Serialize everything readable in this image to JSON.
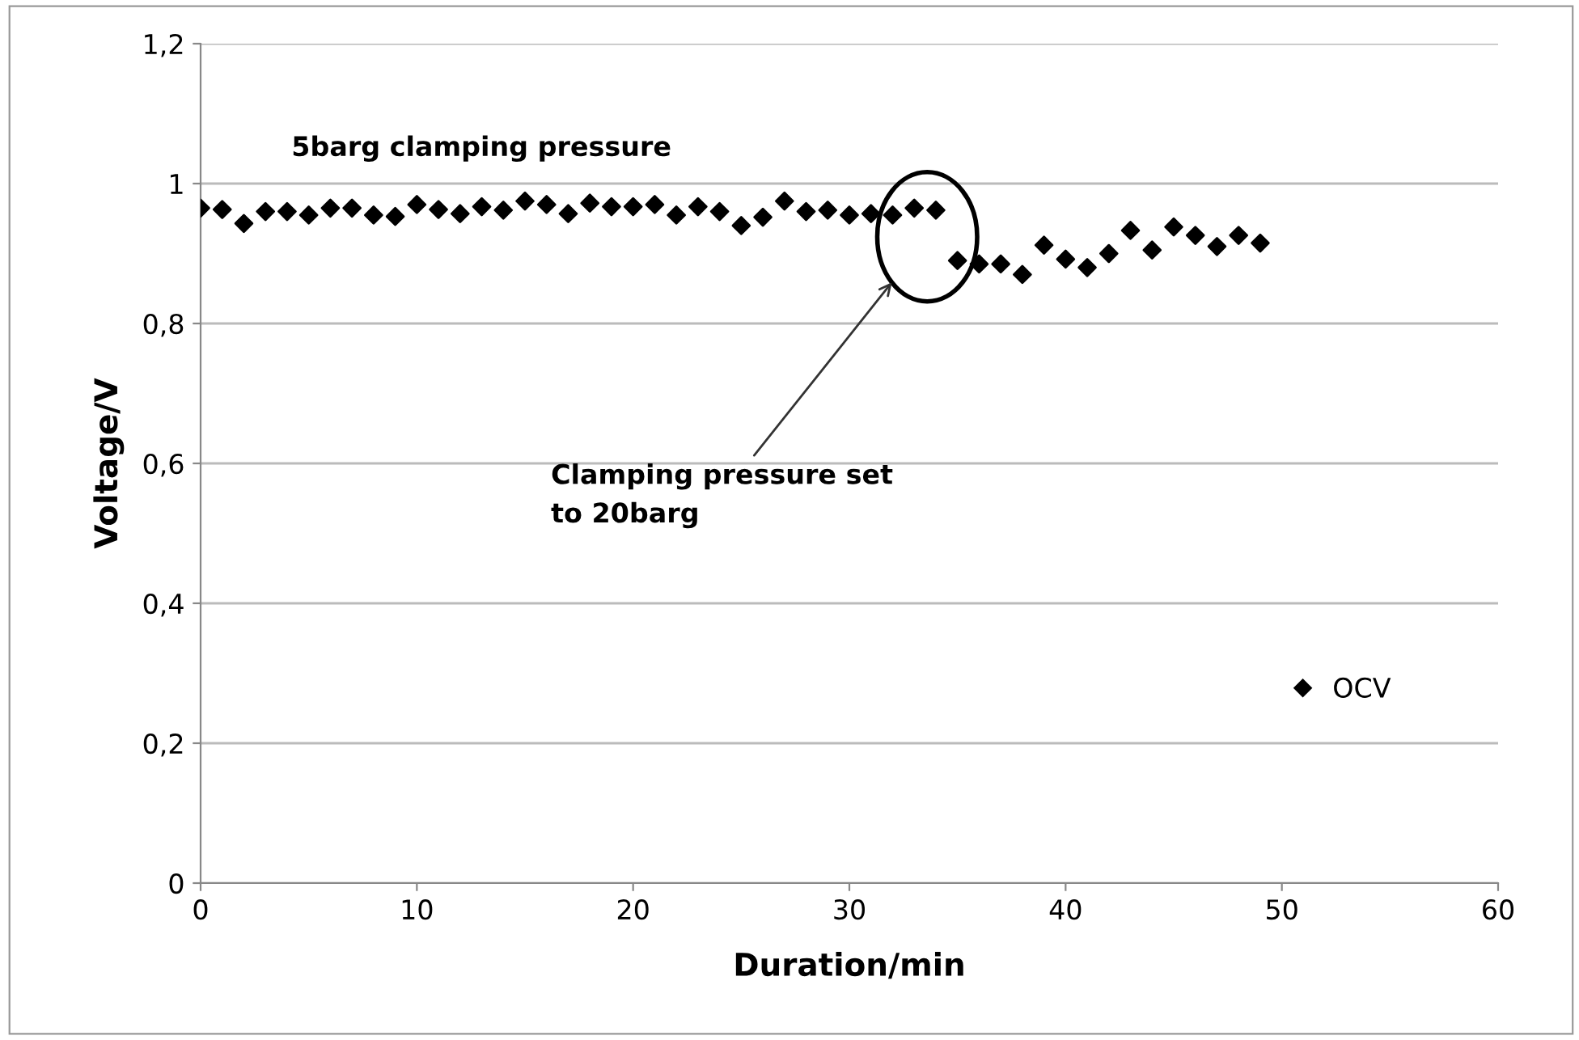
{
  "chart_data": {
    "type": "scatter",
    "xlabel": "Duration/min",
    "ylabel": "Voltage/V",
    "x": [
      0,
      1,
      2,
      3,
      4,
      5,
      6,
      7,
      8,
      9,
      10,
      11,
      12,
      13,
      14,
      15,
      16,
      17,
      18,
      19,
      20,
      21,
      22,
      23,
      24,
      25,
      26,
      27,
      28,
      29,
      30,
      31,
      32,
      33,
      34,
      35,
      36,
      37,
      38,
      39,
      40,
      41,
      42,
      43,
      44,
      45,
      46,
      47,
      48,
      49
    ],
    "series": [
      {
        "name": "OCV",
        "color": "#000000",
        "values": [
          0.965,
          0.963,
          0.943,
          0.96,
          0.96,
          0.955,
          0.965,
          0.965,
          0.955,
          0.953,
          0.97,
          0.963,
          0.957,
          0.967,
          0.962,
          0.975,
          0.97,
          0.957,
          0.972,
          0.967,
          0.967,
          0.97,
          0.955,
          0.967,
          0.96,
          0.94,
          0.952,
          0.975,
          0.96,
          0.962,
          0.955,
          0.957,
          0.955,
          0.965,
          0.962,
          0.89,
          0.885,
          0.885,
          0.87,
          0.912,
          0.892,
          0.88,
          0.9,
          0.933,
          0.905,
          0.938,
          0.926,
          0.91,
          0.926,
          0.915
        ]
      }
    ],
    "xlim": [
      0,
      60
    ],
    "xticks": [
      0,
      10,
      20,
      30,
      40,
      50,
      60
    ],
    "ylim": [
      0,
      1.2
    ],
    "yticks": [
      {
        "value": 0,
        "label": "0"
      },
      {
        "value": 0.2,
        "label": "0,2"
      },
      {
        "value": 0.4,
        "label": "0,4"
      },
      {
        "value": 0.6,
        "label": "0,6"
      },
      {
        "value": 0.8,
        "label": "0,8"
      },
      {
        "value": 1,
        "label": "1"
      },
      {
        "value": 1.2,
        "label": "1,2"
      }
    ],
    "grid": "y",
    "legend": "right",
    "marker": "diamond",
    "annotations": [
      "5barg clamping pressure",
      "Clamping pressure set\nto 20barg"
    ]
  }
}
